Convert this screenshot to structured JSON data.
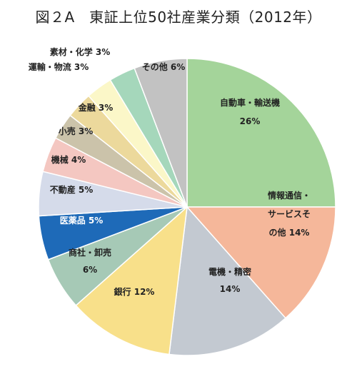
{
  "title": "図２A　東証上位50社産業分類（2012年）",
  "chart_data": {
    "type": "pie",
    "title": "図２A　東証上位50社産業分類（2012年）",
    "unit": "%",
    "slices": [
      {
        "name": "自動車・輸送機",
        "name2": "",
        "value": 26,
        "value_label": "26%",
        "color": "#a4d49a"
      },
      {
        "name": "情報通信・",
        "name2": "サービスそ",
        "name3": "の他",
        "value": 14,
        "value_label": "14%",
        "color": "#f5b79a"
      },
      {
        "name": "電機・精密",
        "name2": "",
        "value": 14,
        "value_label": "14%",
        "color": "#c3c9d1"
      },
      {
        "name": "銀行",
        "name2": "",
        "value": 12,
        "value_label": "12%",
        "color": "#f8e08a"
      },
      {
        "name": "商社・卸売",
        "name2": "",
        "value": 6,
        "value_label": "6%",
        "color": "#a6c9b6"
      },
      {
        "name": "医薬品",
        "name2": "",
        "value": 5,
        "value_label": "5%",
        "color": "#1e6ab8"
      },
      {
        "name": "不動産",
        "name2": "",
        "value": 5,
        "value_label": "5%",
        "color": "#d5dbea"
      },
      {
        "name": "機械",
        "name2": "",
        "value": 4,
        "value_label": "4%",
        "color": "#f4c7c1"
      },
      {
        "name": "小売",
        "name2": "",
        "value": 3,
        "value_label": "3%",
        "color": "#cbc3aa"
      },
      {
        "name": "金融",
        "name2": "",
        "value": 3,
        "value_label": "3%",
        "color": "#ecd99c"
      },
      {
        "name": "運輸・物流",
        "name2": "",
        "value": 3,
        "value_label": "3%",
        "color": "#fbf7c8"
      },
      {
        "name": "素材・化学",
        "name2": "",
        "value": 3,
        "value_label": "3%",
        "color": "#a5d7bb"
      },
      {
        "name": "その他",
        "name2": "",
        "value": 6,
        "value_label": "6%",
        "color": "#c2c2c2"
      }
    ]
  }
}
